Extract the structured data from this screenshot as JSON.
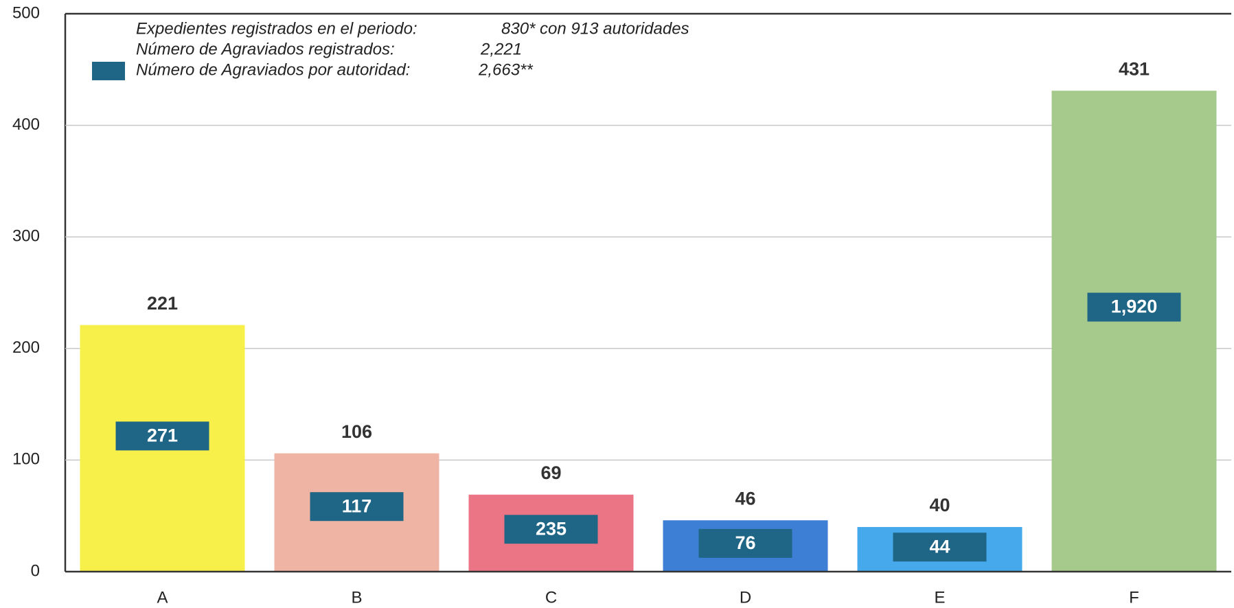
{
  "chart_data": {
    "type": "bar",
    "categories": [
      "A",
      "B",
      "C",
      "D",
      "E",
      "F"
    ],
    "values": [
      221,
      106,
      69,
      46,
      40,
      431
    ],
    "colors": [
      "#f7f04a",
      "#f0b4a4",
      "#ec7585",
      "#3d7fd4",
      "#46a9ec",
      "#a6c98c"
    ],
    "inner_labels": {
      "color": "#1f6585",
      "values": [
        271,
        117,
        235,
        76,
        44,
        1920
      ],
      "value_labels": [
        "271",
        "117",
        "235",
        "76",
        "44",
        "1,920"
      ]
    },
    "notes": [
      {
        "label": "Expedientes registrados en el periodo:",
        "value": "830* con 913 autoridades"
      },
      {
        "label": "Número de Agraviados registrados:",
        "value": "2,221"
      },
      {
        "label": "Número de Agraviados por autoridad:",
        "value": "2,663**"
      }
    ],
    "ylim": [
      0,
      500
    ],
    "yticks": [
      0,
      100,
      200,
      300,
      400,
      500
    ],
    "grid": true
  }
}
